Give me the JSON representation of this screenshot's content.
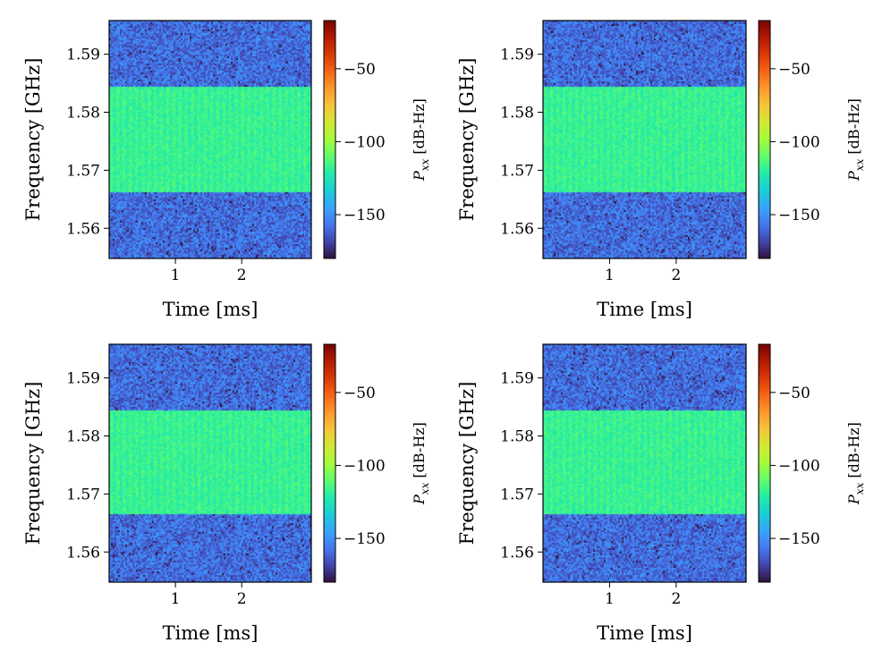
{
  "colors": {
    "colormap": "turbo",
    "frame": "#000000",
    "background": "#ffffff"
  },
  "chart_data": [
    {
      "type": "heatmap",
      "panel": "top-left",
      "xlabel": "Time [ms]",
      "ylabel": "Frequency [GHz]",
      "colorbar_label_base": "P",
      "colorbar_label_sub": "xx",
      "colorbar_label_unit": "[dB-Hz]",
      "xlim": [
        0,
        3.05
      ],
      "ylim": [
        1.5548,
        1.5958
      ],
      "xticks": [
        1,
        2
      ],
      "xtick_labels": [
        "1",
        "2"
      ],
      "yticks": [
        1.56,
        1.57,
        1.58,
        1.59
      ],
      "ytick_labels": [
        "1.56",
        "1.57",
        "1.58",
        "1.59"
      ],
      "clim": [
        -180,
        -17
      ],
      "cticks": [
        -50,
        -100,
        -150
      ],
      "ctick_labels": [
        "−50",
        "−100",
        "−150"
      ],
      "signal_band": [
        1.5664,
        1.5846
      ],
      "noise_level_db": -158,
      "signal_level_db": -118
    },
    {
      "type": "heatmap",
      "panel": "top-right",
      "xlabel": "Time [ms]",
      "ylabel": "Frequency [GHz]",
      "colorbar_label_base": "P",
      "colorbar_label_sub": "xx",
      "colorbar_label_unit": "[dB-Hz]",
      "xlim": [
        0,
        3.05
      ],
      "ylim": [
        1.5548,
        1.5958
      ],
      "xticks": [
        1,
        2
      ],
      "xtick_labels": [
        "1",
        "2"
      ],
      "yticks": [
        1.56,
        1.57,
        1.58,
        1.59
      ],
      "ytick_labels": [
        "1.56",
        "1.57",
        "1.58",
        "1.59"
      ],
      "clim": [
        -180,
        -17
      ],
      "cticks": [
        -50,
        -100,
        -150
      ],
      "ctick_labels": [
        "−50",
        "−100",
        "−150"
      ],
      "signal_band": [
        1.5664,
        1.5846
      ],
      "noise_level_db": -158,
      "signal_level_db": -118
    },
    {
      "type": "heatmap",
      "panel": "bottom-left",
      "xlabel": "Time [ms]",
      "ylabel": "Frequency [GHz]",
      "colorbar_label_base": "P",
      "colorbar_label_sub": "xx",
      "colorbar_label_unit": "[dB-Hz]",
      "xlim": [
        0,
        3.05
      ],
      "ylim": [
        1.5548,
        1.5958
      ],
      "xticks": [
        1,
        2
      ],
      "xtick_labels": [
        "1",
        "2"
      ],
      "yticks": [
        1.56,
        1.57,
        1.58,
        1.59
      ],
      "ytick_labels": [
        "1.56",
        "1.57",
        "1.58",
        "1.59"
      ],
      "clim": [
        -180,
        -17
      ],
      "cticks": [
        -50,
        -100,
        -150
      ],
      "ctick_labels": [
        "−50",
        "−100",
        "−150"
      ],
      "signal_band": [
        1.5666,
        1.5846
      ],
      "noise_level_db": -158,
      "signal_level_db": -118
    },
    {
      "type": "heatmap",
      "panel": "bottom-right",
      "xlabel": "Time [ms]",
      "ylabel": "Frequency [GHz]",
      "colorbar_label_base": "P",
      "colorbar_label_sub": "xx",
      "colorbar_label_unit": "[dB-Hz]",
      "xlim": [
        0,
        3.05
      ],
      "ylim": [
        1.5548,
        1.5958
      ],
      "xticks": [
        1,
        2
      ],
      "xtick_labels": [
        "1",
        "2"
      ],
      "yticks": [
        1.56,
        1.57,
        1.58,
        1.59
      ],
      "ytick_labels": [
        "1.56",
        "1.57",
        "1.58",
        "1.59"
      ],
      "clim": [
        -180,
        -17
      ],
      "cticks": [
        -50,
        -100,
        -150
      ],
      "ctick_labels": [
        "−50",
        "−100",
        "−150"
      ],
      "signal_band": [
        1.5666,
        1.5846
      ],
      "noise_level_db": -158,
      "signal_level_db": -118
    }
  ]
}
